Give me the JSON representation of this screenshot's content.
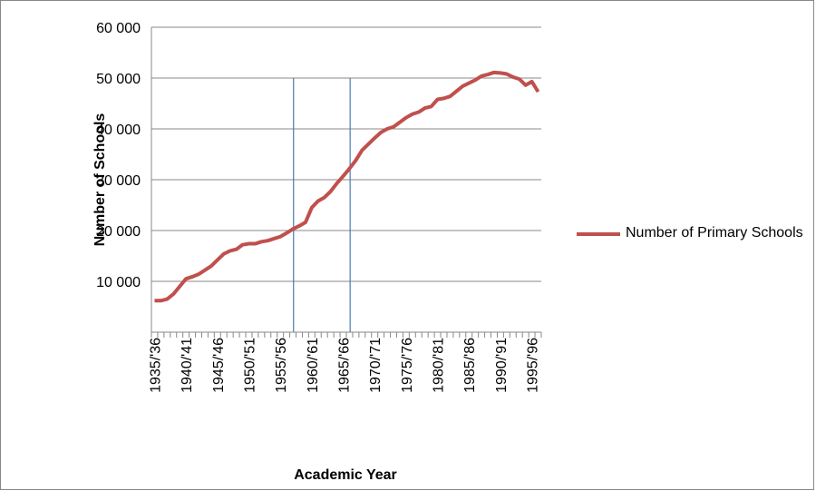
{
  "chart_data": {
    "type": "line",
    "x_label": "Academic Year",
    "y_label": "Number of Schools",
    "categories": [
      "1935/'36",
      null,
      null,
      null,
      null,
      "1940/'41",
      null,
      null,
      null,
      null,
      "1945/'46",
      null,
      null,
      null,
      null,
      "1950/'51",
      null,
      null,
      null,
      null,
      "1955/'56",
      null,
      null,
      null,
      null,
      "1960/'61",
      null,
      null,
      null,
      null,
      "1965/'66",
      null,
      null,
      null,
      null,
      "1970/'71",
      null,
      null,
      null,
      null,
      "1975/'76",
      null,
      null,
      null,
      null,
      "1980/'81",
      null,
      null,
      null,
      null,
      "1985/'86",
      null,
      null,
      null,
      null,
      "1990/'91",
      null,
      null,
      null,
      null,
      "1995/'96",
      null
    ],
    "series": [
      {
        "name": "Number of Primary Schools",
        "color": "#c0504d",
        "values": [
          6200,
          6200,
          6500,
          7500,
          9000,
          10500,
          10900,
          11400,
          12200,
          13000,
          14200,
          15400,
          16000,
          16300,
          17200,
          17400,
          17400,
          17800,
          18000,
          18400,
          18800,
          19500,
          20300,
          20900,
          21600,
          24500,
          25800,
          26500,
          27700,
          29300,
          30700,
          32200,
          33800,
          35800,
          37000,
          38200,
          39300,
          40000,
          40400,
          41300,
          42200,
          42900,
          43300,
          44100,
          44400,
          45800,
          46000,
          46400,
          47400,
          48400,
          49000,
          49600,
          50400,
          50700,
          51100,
          51000,
          50800,
          50200,
          49800,
          48600,
          49300,
          47300
        ]
      }
    ],
    "ylim": [
      0,
      60000
    ],
    "yticks": [
      {
        "value": 10000,
        "label": "10 000"
      },
      {
        "value": 20000,
        "label": "20 000"
      },
      {
        "value": 30000,
        "label": "30 000"
      },
      {
        "value": 40000,
        "label": "40 000"
      },
      {
        "value": 50000,
        "label": "50 000"
      },
      {
        "value": 60000,
        "label": "60 000"
      }
    ],
    "grid": true,
    "legend": "right"
  }
}
